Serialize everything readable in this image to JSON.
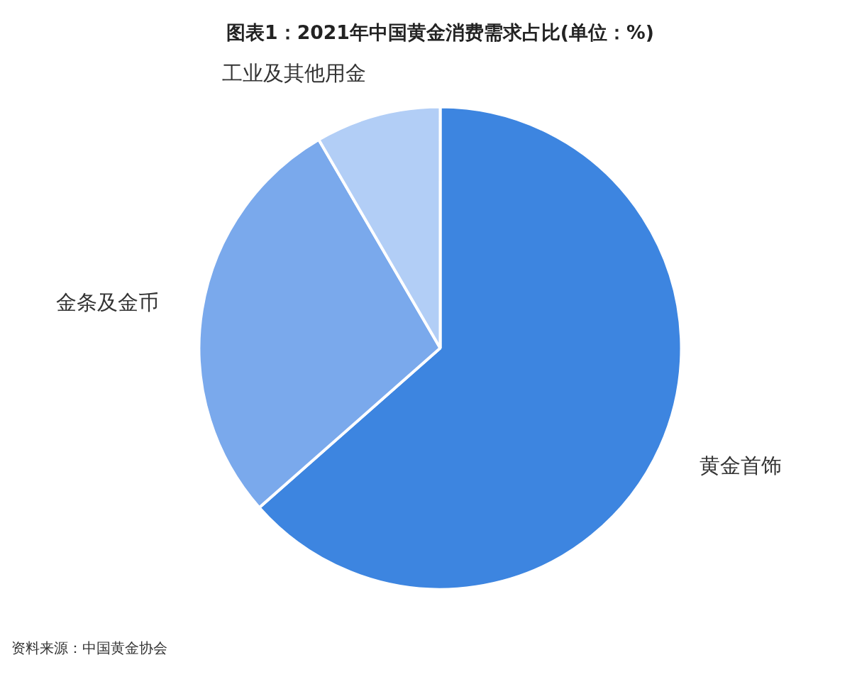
{
  "chart_data": {
    "type": "pie",
    "title": "图表1：2021年中国黄金消费需求占比(单位：%)",
    "categories": [
      "黄金首饰",
      "金条及金币",
      "工业及其他用金"
    ],
    "values": [
      63.5,
      28.1,
      8.4
    ],
    "colors": [
      "#3d85e0",
      "#7aa9ec",
      "#b2cef6"
    ],
    "annotations": [
      "资料来源：中国黄金协会"
    ]
  }
}
